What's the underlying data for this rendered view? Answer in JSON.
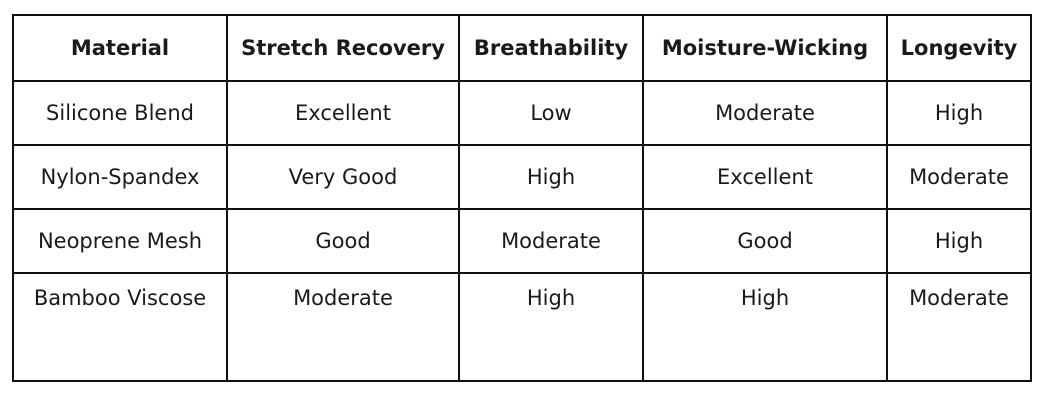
{
  "table": {
    "headers": [
      "Material",
      "Stretch Recovery",
      "Breathability",
      "Moisture-Wicking",
      "Longevity"
    ],
    "rows": [
      [
        "Silicone Blend",
        "Excellent",
        "Low",
        "Moderate",
        "High"
      ],
      [
        "Nylon-Spandex",
        "Very Good",
        "High",
        "Excellent",
        "Moderate"
      ],
      [
        "Neoprene Mesh",
        "Good",
        "Moderate",
        "Good",
        "High"
      ],
      [
        "Bamboo Viscose",
        "Moderate",
        "High",
        "High",
        "Moderate"
      ]
    ]
  }
}
